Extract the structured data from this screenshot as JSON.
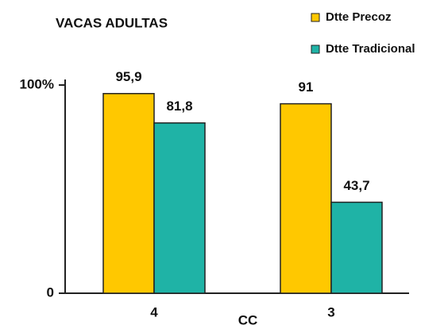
{
  "chart_data": {
    "type": "bar",
    "title": "VACAS ADULTAS",
    "x_label": "CC",
    "categories": [
      "4",
      "3"
    ],
    "series": [
      {
        "name": "Dtte Precoz",
        "color": "#ffc800",
        "values": [
          95.9,
          91
        ],
        "value_labels": [
          "95,9",
          "91"
        ]
      },
      {
        "name": "Dtte Tradicional",
        "color": "#1fb3a6",
        "values": [
          81.8,
          43.7
        ],
        "value_labels": [
          "81,8",
          "43,7"
        ]
      }
    ],
    "ylim": [
      0,
      100
    ],
    "yticks": [
      0,
      {
        "value": 100,
        "label": "100%"
      }
    ],
    "legend": "top-right"
  }
}
